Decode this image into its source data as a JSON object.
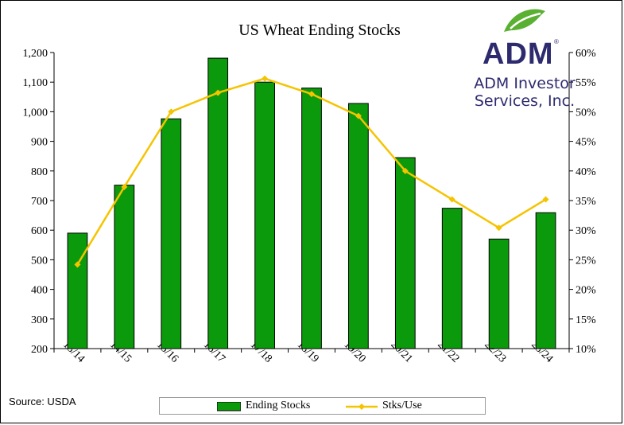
{
  "chart_data": {
    "type": "bar",
    "title": "US Wheat Ending Stocks",
    "categories": [
      "13/14",
      "14/15",
      "15/16",
      "16/17",
      "17/18",
      "18/19",
      "19/20",
      "20/21",
      "21/22",
      "22/23",
      "23/24"
    ],
    "series": [
      {
        "name": "Ending Stocks",
        "type": "bar",
        "axis": "left",
        "color": "#0b9a0b",
        "values": [
          590,
          752,
          976,
          1181,
          1100,
          1080,
          1028,
          845,
          674,
          570,
          659
        ]
      },
      {
        "name": "Stks/Use",
        "type": "line",
        "axis": "right",
        "color": "#f5c400",
        "values": [
          24.2,
          37.3,
          50.0,
          53.2,
          55.6,
          53.0,
          49.3,
          40.0,
          35.2,
          30.4,
          35.2
        ]
      }
    ],
    "ylim": [
      200,
      1200
    ],
    "y_ticks": [
      "200",
      "300",
      "400",
      "500",
      "600",
      "700",
      "800",
      "900",
      "1,000",
      "1,100",
      "1,200"
    ],
    "y2lim": [
      10,
      60
    ],
    "y2_ticks": [
      "10%",
      "15%",
      "20%",
      "25%",
      "30%",
      "35%",
      "40%",
      "45%",
      "50%",
      "55%",
      "60%"
    ],
    "legend_position": "bottom",
    "grid": false
  },
  "source": "Source: USDA",
  "logo": {
    "wordmark": "ADM",
    "registered": "®",
    "line1": "ADM Investor",
    "line2": "Services, Inc.",
    "icon": "leaf-icon",
    "leaf_color": "#5ab031",
    "text_color": "#2d2a6e"
  }
}
